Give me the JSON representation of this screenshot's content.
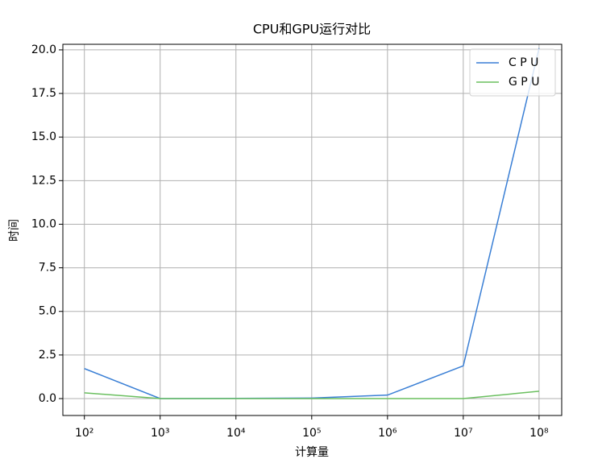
{
  "chart_data": {
    "type": "line",
    "title": "CPU和GPU运行对比",
    "x_label": "计算量",
    "y_label": "时间",
    "x": [
      100,
      1000,
      10000,
      100000,
      1000000,
      10000000,
      100000000
    ],
    "series": [
      {
        "name": "C P U",
        "color": "#3a7fd5",
        "values": [
          1.72,
          0.0,
          0.01,
          0.03,
          0.2,
          1.88,
          20.1
        ]
      },
      {
        "name": "G P U",
        "color": "#6abf5f",
        "values": [
          0.33,
          0.0,
          0.0,
          0.0,
          0.0,
          0.0,
          0.42
        ]
      }
    ],
    "xscale": "log",
    "xlim": [
      52,
      199000000
    ],
    "xticks": [
      {
        "value": 100,
        "label": "10²"
      },
      {
        "value": 1000,
        "label": "10³"
      },
      {
        "value": 10000,
        "label": "10⁴"
      },
      {
        "value": 100000,
        "label": "10⁵"
      },
      {
        "value": 1000000,
        "label": "10⁶"
      },
      {
        "value": 10000000,
        "label": "10⁷"
      },
      {
        "value": 100000000,
        "label": "10⁸"
      }
    ],
    "ylim": [
      -0.97,
      20.32
    ],
    "yticks": [
      {
        "value": 0,
        "label": "0.0"
      },
      2.5,
      {
        "value": 5,
        "label": "5.0"
      },
      7.5,
      {
        "value": 10,
        "label": "10.0"
      },
      12.5,
      {
        "value": 15,
        "label": "15.0"
      },
      17.5,
      {
        "value": 20,
        "label": "20.0"
      }
    ],
    "grid": true,
    "legend": "upper right"
  }
}
